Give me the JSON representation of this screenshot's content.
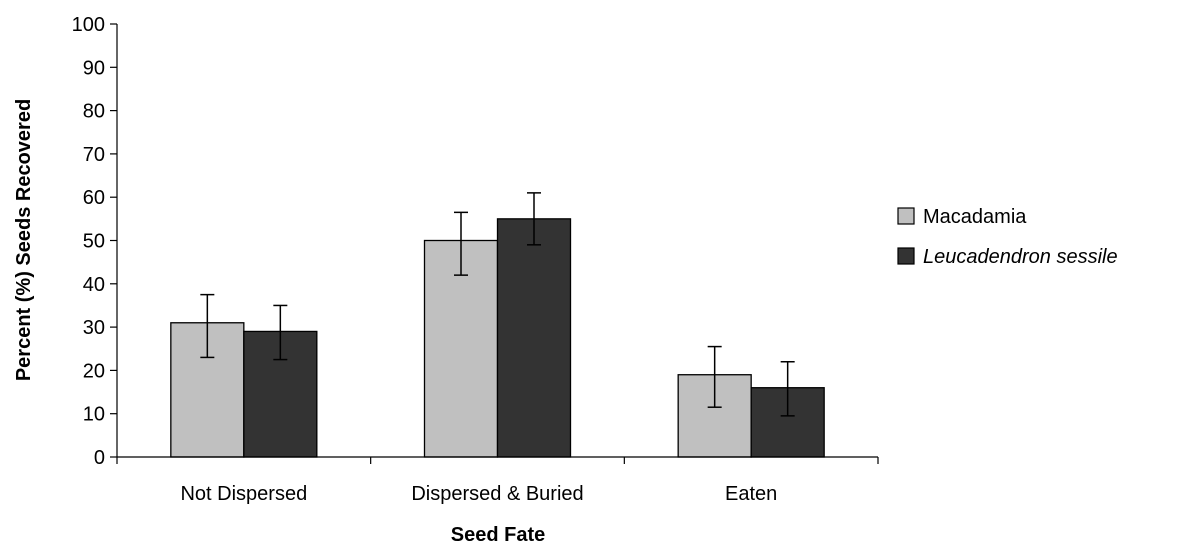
{
  "chart_data": {
    "type": "bar",
    "title": "",
    "xlabel": "Seed Fate",
    "ylabel": "Percent (%) Seeds Recovered",
    "ylim": [
      0,
      100
    ],
    "yticks": [
      0,
      10,
      20,
      30,
      40,
      50,
      60,
      70,
      80,
      90,
      100
    ],
    "categories": [
      "Not Dispersed",
      "Dispersed & Buried",
      "Eaten"
    ],
    "series": [
      {
        "name": "Macadamia",
        "italic": false,
        "color": "#c0c0c0",
        "values": [
          31,
          50,
          19
        ],
        "error_low": [
          23,
          42,
          11.5
        ],
        "error_high": [
          37.5,
          56.5,
          25.5
        ]
      },
      {
        "name": "Leucadendron sessile",
        "italic": true,
        "color": "#333333",
        "values": [
          29,
          55,
          16
        ],
        "error_low": [
          22.5,
          49,
          9.5
        ],
        "error_high": [
          35,
          61,
          22
        ]
      }
    ],
    "legend_position": "right",
    "grid": false
  }
}
